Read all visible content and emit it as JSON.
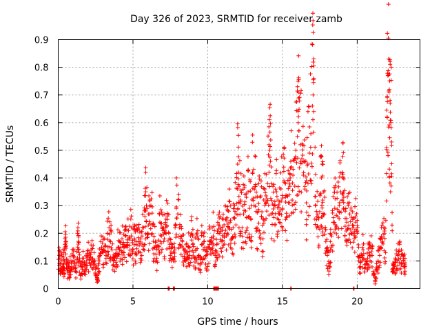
{
  "colors": {
    "series": "#ff0000",
    "grid": "#a0a0a0",
    "axis": "#000000"
  },
  "chart_data": {
    "type": "scatter",
    "title": "Day 326 of 2023, SRMTID for receiver zamb",
    "xlabel": "GPS time / hours",
    "ylabel": "SRMTID / TECUs",
    "xlim": [
      0,
      24.2
    ],
    "ylim": [
      0,
      0.9
    ],
    "xticks": [
      0,
      5,
      10,
      15,
      20
    ],
    "yticks": [
      0,
      0.1,
      0.2,
      0.3,
      0.4,
      0.5,
      0.6,
      0.7,
      0.8,
      0.9
    ],
    "xtick_labels": [
      "0",
      "5",
      "10",
      "15",
      "20"
    ],
    "ytick_labels": [
      "0",
      "0.1",
      "0.2",
      "0.3",
      "0.4",
      "0.5",
      "0.6",
      "0.7",
      "0.8",
      "0.9"
    ],
    "grid": true,
    "marker": "+",
    "series": [
      {
        "name": "SRMTID",
        "points": [
          [
            0.0,
            0.07
          ],
          [
            0.1,
            0.12
          ],
          [
            0.15,
            0.06
          ],
          [
            0.2,
            0.1
          ],
          [
            0.3,
            0.08
          ],
          [
            0.35,
            0.13
          ],
          [
            0.4,
            0.05
          ],
          [
            0.45,
            0.16
          ],
          [
            0.5,
            0.17
          ],
          [
            0.55,
            0.09
          ],
          [
            0.6,
            0.06
          ],
          [
            0.7,
            0.08
          ],
          [
            0.75,
            0.04
          ],
          [
            0.8,
            0.1
          ],
          [
            0.9,
            0.07
          ],
          [
            1.0,
            0.12
          ],
          [
            1.1,
            0.09
          ],
          [
            1.2,
            0.06
          ],
          [
            1.3,
            0.15
          ],
          [
            1.35,
            0.17
          ],
          [
            1.4,
            0.1
          ],
          [
            1.5,
            0.05
          ],
          [
            1.6,
            0.08
          ],
          [
            1.7,
            0.11
          ],
          [
            1.8,
            0.06
          ],
          [
            1.9,
            0.1
          ],
          [
            2.0,
            0.12
          ],
          [
            2.1,
            0.09
          ],
          [
            2.2,
            0.14
          ],
          [
            2.3,
            0.11
          ],
          [
            2.4,
            0.13
          ],
          [
            2.5,
            0.07
          ],
          [
            2.6,
            0.04
          ],
          [
            2.65,
            0.03
          ],
          [
            2.7,
            0.09
          ],
          [
            2.8,
            0.12
          ],
          [
            2.9,
            0.15
          ],
          [
            3.0,
            0.13
          ],
          [
            3.1,
            0.18
          ],
          [
            3.2,
            0.12
          ],
          [
            3.3,
            0.2
          ],
          [
            3.4,
            0.22
          ],
          [
            3.5,
            0.17
          ],
          [
            3.6,
            0.14
          ],
          [
            3.7,
            0.1
          ],
          [
            3.8,
            0.08
          ],
          [
            3.9,
            0.12
          ],
          [
            4.0,
            0.15
          ],
          [
            4.1,
            0.17
          ],
          [
            4.2,
            0.11
          ],
          [
            4.3,
            0.16
          ],
          [
            4.4,
            0.13
          ],
          [
            4.5,
            0.19
          ],
          [
            4.6,
            0.15
          ],
          [
            4.7,
            0.21
          ],
          [
            4.8,
            0.18
          ],
          [
            4.9,
            0.22
          ],
          [
            5.0,
            0.14
          ],
          [
            5.1,
            0.18
          ],
          [
            5.2,
            0.16
          ],
          [
            5.3,
            0.21
          ],
          [
            5.4,
            0.17
          ],
          [
            5.5,
            0.13
          ],
          [
            5.6,
            0.19
          ],
          [
            5.7,
            0.22
          ],
          [
            5.8,
            0.26
          ],
          [
            5.85,
            0.35
          ],
          [
            5.9,
            0.3
          ],
          [
            6.0,
            0.2
          ],
          [
            6.1,
            0.27
          ],
          [
            6.2,
            0.3
          ],
          [
            6.3,
            0.23
          ],
          [
            6.4,
            0.15
          ],
          [
            6.5,
            0.17
          ],
          [
            6.6,
            0.11
          ],
          [
            6.7,
            0.14
          ],
          [
            6.8,
            0.24
          ],
          [
            6.9,
            0.19
          ],
          [
            7.0,
            0.21
          ],
          [
            7.1,
            0.18
          ],
          [
            7.2,
            0.22
          ],
          [
            7.3,
            0.25
          ],
          [
            7.4,
            0.2
          ],
          [
            7.5,
            0.12
          ],
          [
            7.6,
            0.15
          ],
          [
            7.7,
            0.1
          ],
          [
            7.8,
            0.14
          ],
          [
            7.9,
            0.29
          ],
          [
            8.0,
            0.27
          ],
          [
            8.1,
            0.22
          ],
          [
            8.2,
            0.19
          ],
          [
            8.3,
            0.17
          ],
          [
            8.4,
            0.14
          ],
          [
            8.5,
            0.1
          ],
          [
            8.6,
            0.13
          ],
          [
            8.7,
            0.15
          ],
          [
            8.8,
            0.12
          ],
          [
            8.9,
            0.2
          ],
          [
            9.0,
            0.16
          ],
          [
            9.1,
            0.11
          ],
          [
            9.2,
            0.14
          ],
          [
            9.3,
            0.19
          ],
          [
            9.4,
            0.12
          ],
          [
            9.5,
            0.09
          ],
          [
            9.6,
            0.16
          ],
          [
            9.7,
            0.2
          ],
          [
            9.8,
            0.15
          ],
          [
            9.9,
            0.12
          ],
          [
            10.0,
            0.08
          ],
          [
            10.1,
            0.17
          ],
          [
            10.2,
            0.14
          ],
          [
            10.3,
            0.22
          ],
          [
            10.4,
            0.18
          ],
          [
            10.5,
            0.12
          ],
          [
            10.6,
            0.16
          ],
          [
            10.7,
            0.23
          ],
          [
            10.8,
            0.2
          ],
          [
            10.9,
            0.17
          ],
          [
            11.0,
            0.21
          ],
          [
            11.1,
            0.19
          ],
          [
            11.2,
            0.25
          ],
          [
            11.3,
            0.2
          ],
          [
            11.4,
            0.28
          ],
          [
            11.5,
            0.24
          ],
          [
            11.6,
            0.18
          ],
          [
            11.7,
            0.22
          ],
          [
            11.8,
            0.3
          ],
          [
            11.9,
            0.27
          ],
          [
            12.0,
            0.45
          ],
          [
            12.05,
            0.42
          ],
          [
            12.1,
            0.37
          ],
          [
            12.2,
            0.32
          ],
          [
            12.3,
            0.22
          ],
          [
            12.4,
            0.27
          ],
          [
            12.5,
            0.34
          ],
          [
            12.6,
            0.21
          ],
          [
            12.7,
            0.35
          ],
          [
            12.8,
            0.29
          ],
          [
            12.9,
            0.25
          ],
          [
            13.0,
            0.42
          ],
          [
            13.1,
            0.3
          ],
          [
            13.2,
            0.37
          ],
          [
            13.3,
            0.22
          ],
          [
            13.4,
            0.28
          ],
          [
            13.5,
            0.33
          ],
          [
            13.6,
            0.26
          ],
          [
            13.7,
            0.18
          ],
          [
            13.8,
            0.36
          ],
          [
            13.9,
            0.31
          ],
          [
            14.0,
            0.38
          ],
          [
            14.1,
            0.42
          ],
          [
            14.15,
            0.5
          ],
          [
            14.2,
            0.46
          ],
          [
            14.3,
            0.27
          ],
          [
            14.4,
            0.3
          ],
          [
            14.5,
            0.23
          ],
          [
            14.6,
            0.35
          ],
          [
            14.7,
            0.32
          ],
          [
            14.8,
            0.27
          ],
          [
            14.9,
            0.36
          ],
          [
            15.0,
            0.29
          ],
          [
            15.1,
            0.39
          ],
          [
            15.2,
            0.33
          ],
          [
            15.3,
            0.26
          ],
          [
            15.4,
            0.31
          ],
          [
            15.5,
            0.37
          ],
          [
            15.6,
            0.44
          ],
          [
            15.7,
            0.41
          ],
          [
            15.8,
            0.47
          ],
          [
            15.9,
            0.5
          ],
          [
            16.0,
            0.55
          ],
          [
            16.05,
            0.6
          ],
          [
            16.1,
            0.57
          ],
          [
            16.2,
            0.52
          ],
          [
            16.3,
            0.47
          ],
          [
            16.4,
            0.41
          ],
          [
            16.5,
            0.36
          ],
          [
            16.6,
            0.31
          ],
          [
            16.7,
            0.45
          ],
          [
            16.8,
            0.49
          ],
          [
            16.9,
            0.56
          ],
          [
            17.0,
            0.66
          ],
          [
            17.05,
            0.7
          ],
          [
            17.1,
            0.64
          ],
          [
            17.2,
            0.3
          ],
          [
            17.3,
            0.26
          ],
          [
            17.4,
            0.22
          ],
          [
            17.5,
            0.34
          ],
          [
            17.6,
            0.4
          ],
          [
            17.65,
            0.45
          ],
          [
            17.7,
            0.32
          ],
          [
            17.8,
            0.27
          ],
          [
            17.9,
            0.17
          ],
          [
            18.0,
            0.12
          ],
          [
            18.1,
            0.09
          ],
          [
            18.2,
            0.14
          ],
          [
            18.3,
            0.19
          ],
          [
            18.4,
            0.24
          ],
          [
            18.5,
            0.29
          ],
          [
            18.6,
            0.22
          ],
          [
            18.7,
            0.26
          ],
          [
            18.8,
            0.3
          ],
          [
            18.9,
            0.35
          ],
          [
            19.0,
            0.42
          ],
          [
            19.05,
            0.4
          ],
          [
            19.1,
            0.33
          ],
          [
            19.2,
            0.28
          ],
          [
            19.3,
            0.24
          ],
          [
            19.4,
            0.3
          ],
          [
            19.5,
            0.27
          ],
          [
            19.6,
            0.2
          ],
          [
            19.7,
            0.25
          ],
          [
            19.8,
            0.18
          ],
          [
            19.9,
            0.24
          ],
          [
            20.0,
            0.2
          ],
          [
            20.1,
            0.1
          ],
          [
            20.2,
            0.08
          ],
          [
            20.3,
            0.12
          ],
          [
            20.4,
            0.14
          ],
          [
            20.5,
            0.06
          ],
          [
            20.6,
            0.09
          ],
          [
            20.7,
            0.11
          ],
          [
            20.8,
            0.13
          ],
          [
            20.9,
            0.15
          ],
          [
            21.0,
            0.12
          ],
          [
            21.1,
            0.05
          ],
          [
            21.2,
            0.03
          ],
          [
            21.3,
            0.07
          ],
          [
            21.4,
            0.1
          ],
          [
            21.5,
            0.12
          ],
          [
            21.6,
            0.15
          ],
          [
            21.7,
            0.17
          ],
          [
            21.8,
            0.2
          ],
          [
            21.9,
            0.13
          ],
          [
            22.0,
            0.62
          ],
          [
            22.05,
            0.77
          ],
          [
            22.1,
            0.83
          ],
          [
            22.15,
            0.72
          ],
          [
            22.2,
            0.68
          ],
          [
            22.25,
            0.6
          ],
          [
            22.3,
            0.53
          ],
          [
            22.35,
            0.07
          ],
          [
            22.4,
            0.06
          ],
          [
            22.5,
            0.08
          ],
          [
            22.6,
            0.1
          ],
          [
            22.7,
            0.12
          ],
          [
            22.8,
            0.14
          ],
          [
            22.9,
            0.11
          ],
          [
            23.0,
            0.09
          ],
          [
            23.1,
            0.12
          ],
          [
            23.2,
            0.08
          ]
        ]
      }
    ],
    "zero_clusters": [
      [
        7.35,
        7.45
      ],
      [
        7.7,
        7.8
      ],
      [
        10.4,
        10.75
      ],
      [
        15.55,
        15.6
      ],
      [
        19.75,
        19.8
      ]
    ]
  }
}
